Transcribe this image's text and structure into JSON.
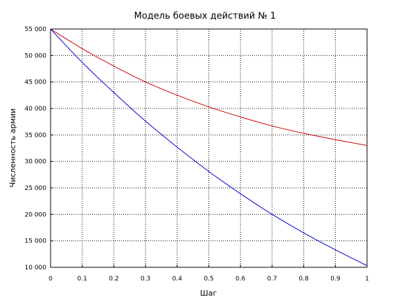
{
  "chart_data": {
    "type": "line",
    "title": "Модель боевых действий № 1",
    "xlabel": "Шаг",
    "ylabel": "Численность армии",
    "xlim": [
      0,
      1
    ],
    "ylim": [
      10000,
      55000
    ],
    "grid": true,
    "x_ticks": [
      0,
      0.1,
      0.2,
      0.3,
      0.4,
      0.5,
      0.6,
      0.7,
      0.8,
      0.9,
      1
    ],
    "x_tick_labels": [
      "0",
      "0.1",
      "0.2",
      "0.3",
      "0.4",
      "0.5",
      "0.6",
      "0.7",
      "0.8",
      "0.9",
      "1"
    ],
    "y_ticks": [
      10000,
      15000,
      20000,
      25000,
      30000,
      35000,
      40000,
      45000,
      50000,
      55000
    ],
    "y_tick_labels": [
      "10 000",
      "15 000",
      "20 000",
      "25 000",
      "30 000",
      "35 000",
      "40 000",
      "45 000",
      "50 000",
      "55 000"
    ],
    "x": [
      0,
      0.1,
      0.2,
      0.3,
      0.4,
      0.5,
      0.6,
      0.7,
      0.8,
      0.9,
      1
    ],
    "series": [
      {
        "color": "#cc0000",
        "values": [
          55000,
          51300,
          48000,
          45000,
          42500,
          40300,
          38400,
          36700,
          35300,
          34100,
          33000
        ]
      },
      {
        "color": "#0000cc",
        "values": [
          55000,
          48700,
          43000,
          37600,
          32700,
          28100,
          23900,
          20000,
          16500,
          13300,
          10300
        ]
      }
    ]
  }
}
